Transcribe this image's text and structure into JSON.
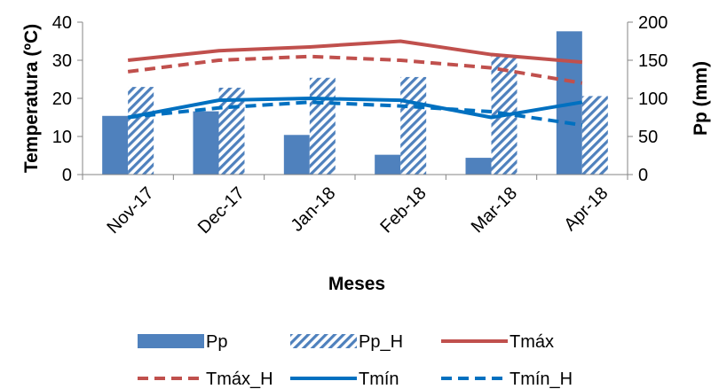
{
  "chart_data": {
    "type": "bar",
    "categories": [
      "Nov-17",
      "Dec-17",
      "Jan-18",
      "Feb-18",
      "Mar-18",
      "Apr-18"
    ],
    "xlabel": "Meses",
    "ylabel": "Temperatura (ºC)",
    "y2label": "Pp (mm)",
    "ylim": [
      0,
      40
    ],
    "yticks": [
      0,
      10,
      20,
      30,
      40
    ],
    "y2lim": [
      0,
      200
    ],
    "y2ticks": [
      0,
      50,
      100,
      150,
      200
    ],
    "grid": false,
    "legend_position": "bottom",
    "bar_series": [
      {
        "name": "Pp",
        "axis": "right",
        "style": "solid",
        "color": "#4F81BD",
        "values": [
          77,
          83,
          52,
          26,
          22,
          188
        ]
      },
      {
        "name": "Pp_H",
        "axis": "right",
        "style": "hatched",
        "color": "#4F81BD",
        "values": [
          115,
          114,
          127,
          128,
          155,
          103
        ]
      }
    ],
    "line_series": [
      {
        "name": "Tmáx",
        "axis": "left",
        "style": "solid",
        "color": "#C0504D",
        "values": [
          30,
          32.5,
          33.5,
          35,
          31.5,
          29.5
        ]
      },
      {
        "name": "Tmáx_H",
        "axis": "left",
        "style": "dashed",
        "color": "#C0504D",
        "values": [
          27,
          30,
          31,
          30,
          28,
          24
        ]
      },
      {
        "name": "Tmín",
        "axis": "left",
        "style": "solid",
        "color": "#0070C0",
        "values": [
          15,
          19.5,
          20,
          19.5,
          15,
          19
        ]
      },
      {
        "name": "Tmín_H",
        "axis": "left",
        "style": "dashed",
        "color": "#0070C0",
        "values": [
          15,
          17.5,
          19,
          18,
          16.5,
          13
        ]
      }
    ]
  }
}
